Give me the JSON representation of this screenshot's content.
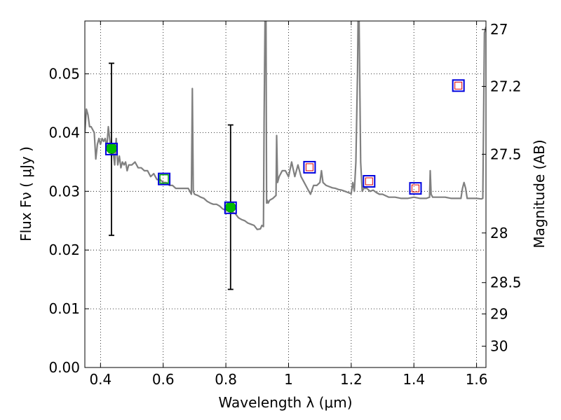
{
  "chart_data": {
    "type": "scatter",
    "title": "",
    "xlabel": "Wavelength  λ (μm)",
    "ylabel": "Flux  Fν  ( μJy )",
    "ylabel_right": "Magnitude (AB)",
    "xlim": [
      0.35,
      1.63
    ],
    "ylim": [
      0.0,
      0.059
    ],
    "grid": true,
    "x_ticks": [
      0.4,
      0.6,
      0.8,
      1.0,
      1.2,
      1.4,
      1.6
    ],
    "x_tick_labels": [
      "0.4",
      "0.6",
      "0.8",
      "1",
      "1.2",
      "1.4",
      "1.6"
    ],
    "y_ticks": [
      0.0,
      0.01,
      0.02,
      0.03,
      0.04,
      0.05
    ],
    "y_tick_labels": [
      "0.00",
      "0.01",
      "0.02",
      "0.03",
      "0.04",
      "0.05"
    ],
    "right_ticks": [
      {
        "label": "27",
        "mag": 27.0
      },
      {
        "label": "27.2",
        "mag": 27.2
      },
      {
        "label": "27.5",
        "mag": 27.5
      },
      {
        "label": "28",
        "mag": 28.0
      },
      {
        "label": "28.5",
        "mag": 28.5
      },
      {
        "label": "29",
        "mag": 29.0
      },
      {
        "label": "30",
        "mag": 30.0
      }
    ],
    "series": [
      {
        "kind": "line",
        "color": "#808080",
        "x": [
          0.35,
          0.355,
          0.36,
          0.365,
          0.37,
          0.38,
          0.385,
          0.39,
          0.395,
          0.4,
          0.405,
          0.41,
          0.415,
          0.42,
          0.425,
          0.43,
          0.435,
          0.44,
          0.445,
          0.45,
          0.455,
          0.46,
          0.465,
          0.47,
          0.475,
          0.48,
          0.485,
          0.49,
          0.5,
          0.51,
          0.52,
          0.53,
          0.54,
          0.55,
          0.56,
          0.57,
          0.58,
          0.59,
          0.6,
          0.61,
          0.62,
          0.63,
          0.64,
          0.65,
          0.66,
          0.67,
          0.68,
          0.69,
          0.693,
          0.696,
          0.7,
          0.71,
          0.72,
          0.73,
          0.74,
          0.75,
          0.76,
          0.77,
          0.78,
          0.79,
          0.8,
          0.81,
          0.82,
          0.83,
          0.84,
          0.85,
          0.86,
          0.87,
          0.88,
          0.89,
          0.9,
          0.91,
          0.915,
          0.92,
          0.922,
          0.925,
          0.928,
          0.93,
          0.932,
          0.935,
          0.94,
          0.95,
          0.96,
          0.962,
          0.965,
          0.97,
          0.98,
          0.99,
          1.0,
          1.01,
          1.02,
          1.03,
          1.04,
          1.05,
          1.06,
          1.07,
          1.08,
          1.09,
          1.1,
          1.105,
          1.11,
          1.12,
          1.13,
          1.14,
          1.15,
          1.16,
          1.17,
          1.18,
          1.19,
          1.2,
          1.205,
          1.21,
          1.215,
          1.22,
          1.222,
          1.225,
          1.23,
          1.235,
          1.24,
          1.25,
          1.26,
          1.27,
          1.28,
          1.29,
          1.3,
          1.32,
          1.34,
          1.36,
          1.38,
          1.4,
          1.42,
          1.44,
          1.45,
          1.452,
          1.455,
          1.46,
          1.48,
          1.5,
          1.52,
          1.54,
          1.55,
          1.555,
          1.56,
          1.565,
          1.57,
          1.58,
          1.6,
          1.615,
          1.62,
          1.625,
          1.63
        ],
        "y": [
          0.04,
          0.044,
          0.043,
          0.041,
          0.041,
          0.04,
          0.0355,
          0.038,
          0.039,
          0.038,
          0.039,
          0.0385,
          0.039,
          0.0375,
          0.041,
          0.0385,
          0.036,
          0.037,
          0.0345,
          0.039,
          0.0345,
          0.036,
          0.034,
          0.035,
          0.0345,
          0.035,
          0.0335,
          0.0345,
          0.0345,
          0.035,
          0.034,
          0.034,
          0.0335,
          0.0335,
          0.0325,
          0.033,
          0.032,
          0.032,
          0.0315,
          0.0315,
          0.031,
          0.031,
          0.0305,
          0.0305,
          0.0305,
          0.0305,
          0.0305,
          0.0295,
          0.0475,
          0.03,
          0.0295,
          0.0293,
          0.029,
          0.0288,
          0.0283,
          0.028,
          0.0278,
          0.0278,
          0.0275,
          0.027,
          0.0268,
          0.0266,
          0.0265,
          0.0262,
          0.0255,
          0.0252,
          0.025,
          0.0246,
          0.0244,
          0.0242,
          0.0235,
          0.0236,
          0.0242,
          0.024,
          0.042,
          0.06,
          0.06,
          0.028,
          0.0285,
          0.028,
          0.0285,
          0.0288,
          0.0293,
          0.0395,
          0.0315,
          0.0325,
          0.0335,
          0.0335,
          0.0325,
          0.035,
          0.0325,
          0.0345,
          0.0325,
          0.0315,
          0.0305,
          0.0295,
          0.031,
          0.031,
          0.0315,
          0.0335,
          0.0315,
          0.031,
          0.0308,
          0.0306,
          0.0305,
          0.0303,
          0.0302,
          0.03,
          0.0298,
          0.0296,
          0.0315,
          0.03,
          0.035,
          0.05,
          0.06,
          0.06,
          0.035,
          0.03,
          0.0305,
          0.0305,
          0.03,
          0.0302,
          0.0298,
          0.0295,
          0.0295,
          0.029,
          0.029,
          0.0288,
          0.0288,
          0.029,
          0.0288,
          0.0288,
          0.029,
          0.0335,
          0.0295,
          0.029,
          0.029,
          0.029,
          0.0288,
          0.0288,
          0.0288,
          0.0305,
          0.0315,
          0.0305,
          0.0288,
          0.0288,
          0.0288,
          0.0287,
          0.0288,
          0.057,
          0.058
        ]
      },
      {
        "kind": "points",
        "name": "filled circles",
        "marker": "circle",
        "color": "#00bb00",
        "x": [
          0.435,
          0.815
        ],
        "y": [
          0.0373,
          0.0273
        ],
        "err_low": [
          0.0225,
          0.0133
        ],
        "err_high": [
          0.0518,
          0.0413
        ]
      },
      {
        "kind": "points",
        "name": "blue squares",
        "marker": "square",
        "color": "#0000dd",
        "x": [
          0.435,
          0.603,
          0.815,
          1.067,
          1.257,
          1.405,
          1.542
        ],
        "y": [
          0.0372,
          0.0321,
          0.0272,
          0.0341,
          0.0317,
          0.0305,
          0.048
        ]
      },
      {
        "kind": "points",
        "name": "red squares",
        "marker": "square",
        "color": "#dd0000",
        "x": [
          1.067,
          1.257,
          1.405,
          1.542
        ],
        "y": [
          0.0341,
          0.0317,
          0.0305,
          0.048
        ]
      },
      {
        "kind": "points",
        "name": "green squares",
        "marker": "square",
        "color": "#00aa00",
        "x": [
          0.603
        ],
        "y": [
          0.0321
        ]
      }
    ]
  }
}
